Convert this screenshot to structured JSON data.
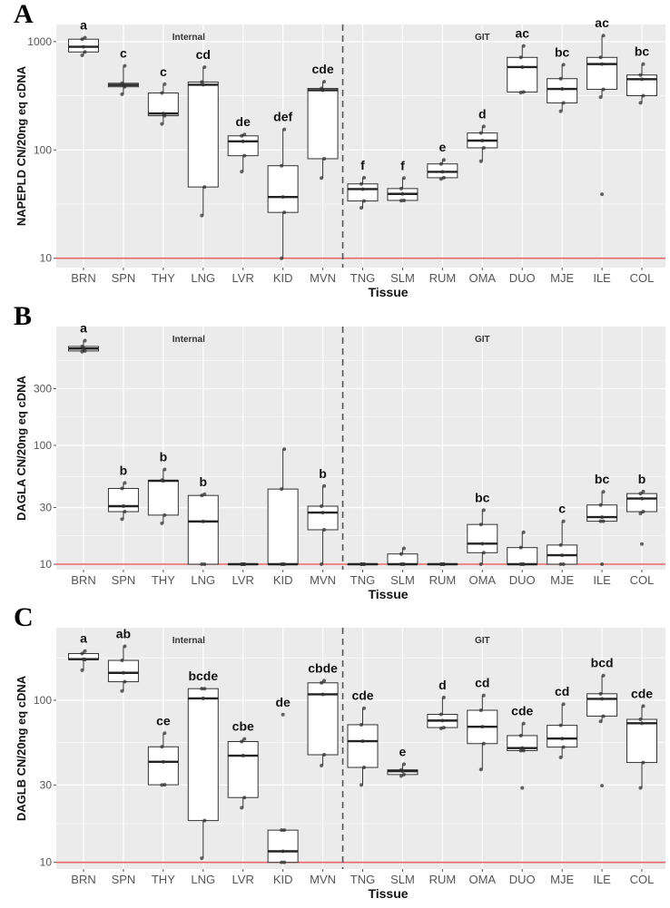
{
  "chart_data": [
    {
      "type": "box",
      "panel_label": "A",
      "ylabel": "NAPEPLD CN/20ng eq cDNA",
      "xlabel": "Tissue",
      "yscale": "log",
      "ylim": [
        8.2,
        1440
      ],
      "yticks": [
        10,
        100,
        1000
      ],
      "ytick_labels": [
        "10",
        "100",
        "1000"
      ],
      "grid": true,
      "reference_line": 10,
      "groups": [
        {
          "label": "Internal",
          "from": "BRN",
          "to": "MVN"
        },
        {
          "label": "GIT",
          "from": "TNG",
          "to": "COL"
        }
      ],
      "categories": [
        "BRN",
        "SPN",
        "THY",
        "LNG",
        "LVR",
        "KID",
        "MVN",
        "TNG",
        "SLM",
        "RUM",
        "OMA",
        "DUO",
        "MJE",
        "ILE",
        "COL"
      ],
      "boxes": [
        {
          "min": 748,
          "q1": 803,
          "median": 896,
          "q3": 1053,
          "max": 1088,
          "outliers": [],
          "letters": "a"
        },
        {
          "min": 327,
          "q1": 383,
          "median": 398,
          "q3": 413,
          "max": 597,
          "outliers": [],
          "letters": "c"
        },
        {
          "min": 174,
          "q1": 207,
          "median": 217,
          "q3": 336,
          "max": 405,
          "outliers": [],
          "letters": "c"
        },
        {
          "min": 24.8,
          "q1": 45.5,
          "median": 400,
          "q3": 424,
          "max": 582,
          "outliers": [],
          "letters": "cd"
        },
        {
          "min": 63,
          "q1": 88.5,
          "median": 120,
          "q3": 135,
          "max": 139,
          "outliers": [],
          "letters": "de"
        },
        {
          "min": 10,
          "q1": 26.5,
          "median": 36.8,
          "q3": 71.5,
          "max": 155,
          "outliers": [],
          "letters": "def"
        },
        {
          "min": 55,
          "q1": 83,
          "median": 356,
          "q3": 370,
          "max": 427,
          "outliers": [],
          "letters": "cde"
        },
        {
          "min": 29.2,
          "q1": 33.8,
          "median": 43.5,
          "q3": 48.6,
          "max": 55.4,
          "outliers": [],
          "letters": "f"
        },
        {
          "min": 34,
          "q1": 34.2,
          "median": 39.3,
          "q3": 44,
          "max": 55,
          "outliers": [],
          "letters": "f"
        },
        {
          "min": 54,
          "q1": 55.4,
          "median": 62.8,
          "q3": 74.3,
          "max": 81,
          "outliers": [],
          "letters": "e"
        },
        {
          "min": 78.7,
          "q1": 104.6,
          "median": 122,
          "q3": 143.5,
          "max": 165,
          "outliers": [],
          "letters": "d"
        },
        {
          "min": 338,
          "q1": 343,
          "median": 582,
          "q3": 715,
          "max": 914,
          "outliers": [],
          "letters": "ac"
        },
        {
          "min": 228,
          "q1": 272,
          "median": 366,
          "q3": 455,
          "max": 612,
          "outliers": [],
          "letters": "bc"
        },
        {
          "min": 307,
          "q1": 363,
          "median": 621,
          "q3": 715,
          "max": 1138,
          "outliers": [
            39
          ],
          "letters": "ac"
        },
        {
          "min": 272,
          "q1": 317,
          "median": 450,
          "q3": 492,
          "max": 621,
          "outliers": [],
          "letters": "bc"
        }
      ]
    },
    {
      "type": "box",
      "panel_label": "B",
      "ylabel": "DAGLA CN/20ng eq cDNA",
      "xlabel": "Tissue",
      "yscale": "log",
      "ylim": [
        9.0,
        1000
      ],
      "yticks": [
        10,
        30,
        100,
        300
      ],
      "ytick_labels": [
        "10",
        "30",
        "100",
        "300"
      ],
      "grid": true,
      "reference_line": 10,
      "groups": [
        {
          "label": "Internal",
          "from": "BRN",
          "to": "MVN"
        },
        {
          "label": "GIT",
          "from": "TNG",
          "to": "COL"
        }
      ],
      "categories": [
        "BRN",
        "SPN",
        "THY",
        "LNG",
        "LVR",
        "KID",
        "MVN",
        "TNG",
        "SLM",
        "RUM",
        "OMA",
        "DUO",
        "MJE",
        "ILE",
        "COL"
      ],
      "boxes": [
        {
          "min": 614,
          "q1": 623,
          "median": 653,
          "q3": 680,
          "max": 762,
          "outliers": [],
          "letters": "a"
        },
        {
          "min": 23.9,
          "q1": 27.7,
          "median": 30.8,
          "q3": 43.4,
          "max": 48.3,
          "outliers": [],
          "letters": "b"
        },
        {
          "min": 22.1,
          "q1": 25.9,
          "median": 50.3,
          "q3": 50.9,
          "max": 62.7,
          "outliers": [],
          "letters": "b"
        },
        {
          "min": 10,
          "q1": 10,
          "median": 22.9,
          "q3": 37.9,
          "max": 38.8,
          "outliers": [],
          "letters": "b"
        },
        {
          "min": 10,
          "q1": 10,
          "median": 10,
          "q3": 10,
          "max": 10,
          "outliers": [],
          "letters": ""
        },
        {
          "min": 10,
          "q1": 10,
          "median": 10,
          "q3": 42.9,
          "max": 93,
          "outliers": [],
          "letters": ""
        },
        {
          "min": 10,
          "q1": 19.5,
          "median": 27.2,
          "q3": 30.8,
          "max": 45.5,
          "outliers": [],
          "letters": "b"
        },
        {
          "min": 10,
          "q1": 10,
          "median": 10,
          "q3": 10,
          "max": 10,
          "outliers": [],
          "letters": ""
        },
        {
          "min": 10,
          "q1": 10,
          "median": 10,
          "q3": 12.2,
          "max": 13.6,
          "outliers": [],
          "letters": ""
        },
        {
          "min": 10,
          "q1": 10,
          "median": 10,
          "q3": 10,
          "max": 10,
          "outliers": [],
          "letters": ""
        },
        {
          "min": 10,
          "q1": 12.5,
          "median": 14.9,
          "q3": 21.6,
          "max": 28.5,
          "outliers": [],
          "letters": "bc"
        },
        {
          "min": 10,
          "q1": 10,
          "median": 10,
          "q3": 13.8,
          "max": 18.6,
          "outliers": [],
          "letters": ""
        },
        {
          "min": 10,
          "q1": 10,
          "median": 11.9,
          "q3": 14.5,
          "max": 23,
          "outliers": [],
          "letters": "c"
        },
        {
          "min": 23,
          "q1": 23,
          "median": 24.9,
          "q3": 31.5,
          "max": 40.7,
          "outliers": [
            10
          ],
          "letters": "bc"
        },
        {
          "min": 26.7,
          "q1": 27.7,
          "median": 35.7,
          "q3": 39.3,
          "max": 40.9,
          "outliers": [
            14.8
          ],
          "letters": "b"
        }
      ]
    },
    {
      "type": "box",
      "panel_label": "C",
      "ylabel": "DAGLB CN/20ng eq cDNA",
      "xlabel": "Tissue",
      "yscale": "log",
      "ylim": [
        9.1,
        280
      ],
      "yticks": [
        10,
        30,
        100
      ],
      "ytick_labels": [
        "10",
        "30",
        "100"
      ],
      "grid": true,
      "reference_line": 10,
      "groups": [
        {
          "label": "Internal",
          "from": "BRN",
          "to": "MVN"
        },
        {
          "label": "GIT",
          "from": "TNG",
          "to": "COL"
        }
      ],
      "categories": [
        "BRN",
        "SPN",
        "THY",
        "LNG",
        "LVR",
        "KID",
        "MVN",
        "TNG",
        "SLM",
        "RUM",
        "OMA",
        "DUO",
        "MJE",
        "ILE",
        "COL"
      ],
      "boxes": [
        {
          "min": 153,
          "q1": 178,
          "median": 179,
          "q3": 194,
          "max": 201,
          "outliers": [],
          "letters": "a"
        },
        {
          "min": 114,
          "q1": 130,
          "median": 147.5,
          "q3": 176,
          "max": 215,
          "outliers": [],
          "letters": "ab"
        },
        {
          "min": 30,
          "q1": 30.1,
          "median": 41.7,
          "q3": 51.6,
          "max": 62.6,
          "outliers": [],
          "letters": "ce"
        },
        {
          "min": 10.6,
          "q1": 18.1,
          "median": 102.6,
          "q3": 117.8,
          "max": 117.8,
          "outliers": [],
          "letters": "bcde"
        },
        {
          "min": 21.7,
          "q1": 25.1,
          "median": 45.5,
          "q3": 55.6,
          "max": 57.7,
          "outliers": [],
          "letters": "cbe"
        },
        {
          "min": 10,
          "q1": 10,
          "median": 11.7,
          "q3": 15.8,
          "max": 15.8,
          "outliers": [
            81.5
          ],
          "letters": "de"
        },
        {
          "min": 39.5,
          "q1": 46.1,
          "median": 108.7,
          "q3": 128,
          "max": 132,
          "outliers": [],
          "letters": "cbde"
        },
        {
          "min": 30,
          "q1": 38.5,
          "median": 55.9,
          "q3": 70.6,
          "max": 89.3,
          "outliers": [],
          "letters": "cde"
        },
        {
          "min": 34.1,
          "q1": 34.8,
          "median": 36.5,
          "q3": 37.2,
          "max": 40.3,
          "outliers": [],
          "letters": "e"
        },
        {
          "min": 67,
          "q1": 67.8,
          "median": 74.9,
          "q3": 81.8,
          "max": 104,
          "outliers": [],
          "letters": "d"
        },
        {
          "min": 37.4,
          "q1": 54,
          "median": 68.6,
          "q3": 86.7,
          "max": 107,
          "outliers": [],
          "letters": "cd"
        },
        {
          "min": 48.9,
          "q1": 48.9,
          "median": 50.7,
          "q3": 60.5,
          "max": 71.8,
          "outliers": [
            28.8
          ],
          "letters": "cde"
        },
        {
          "min": 44.4,
          "q1": 51.4,
          "median": 58,
          "q3": 70,
          "max": 94.6,
          "outliers": [],
          "letters": "cd"
        },
        {
          "min": 74,
          "q1": 79.8,
          "median": 102,
          "q3": 109.6,
          "max": 142,
          "outliers": [
            29.7
          ],
          "letters": "bcd"
        },
        {
          "min": 28.8,
          "q1": 41.3,
          "median": 72.1,
          "q3": 76.2,
          "max": 92,
          "outliers": [],
          "letters": "cde"
        }
      ]
    }
  ],
  "colors": {
    "panel_bg": "#ebebeb",
    "grid": "#ffffff",
    "reference_line": "#e8676b",
    "box_fill": "#ffffff",
    "box_stroke": "#333333",
    "divider": "#555555"
  }
}
